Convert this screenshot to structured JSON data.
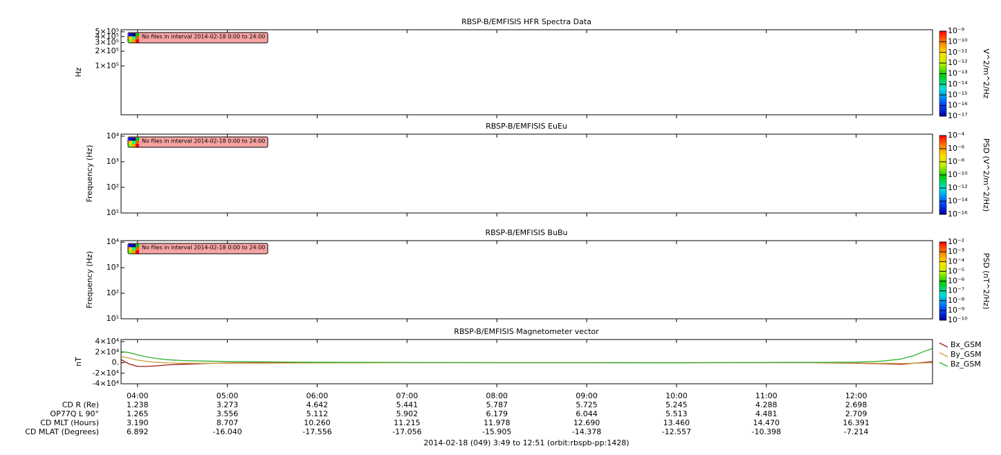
{
  "chart_data": [
    {
      "type": "spectrogram",
      "title": "RBSP-B/EMFISIS  HFR Spectra Data",
      "ylabel": "Hz",
      "log_y": true,
      "ylim": [
        10000,
        550000
      ],
      "yticks": [
        {
          "value": 500000,
          "label": "5×10⁵"
        },
        {
          "value": 400000,
          "label": "4×10⁵"
        },
        {
          "value": 300000,
          "label": "3×10⁵"
        },
        {
          "value": 200000,
          "label": "2×10⁵"
        },
        {
          "value": 100000,
          "label": "1×10⁵"
        }
      ],
      "message": "No files in interval 2014-02-18 0:00 to 24:00",
      "colorbar": {
        "label": "V^2/m^2/Hz",
        "log": true,
        "lim": [
          1e-17,
          1e-09
        ],
        "ticks": [
          {
            "value": 1e-09,
            "label": "10⁻⁹"
          },
          {
            "value": 1e-10,
            "label": "10⁻¹⁰"
          },
          {
            "value": 1e-11,
            "label": "10⁻¹¹"
          },
          {
            "value": 1e-12,
            "label": "10⁻¹²"
          },
          {
            "value": 1e-13,
            "label": "10⁻¹³"
          },
          {
            "value": 1e-14,
            "label": "10⁻¹⁴"
          },
          {
            "value": 1e-15,
            "label": "10⁻¹⁵"
          },
          {
            "value": 1e-16,
            "label": "10⁻¹⁶"
          },
          {
            "value": 1e-17,
            "label": "10⁻¹⁷"
          }
        ]
      }
    },
    {
      "type": "spectrogram",
      "title": "RBSP-B/EMFISIS  EuEu",
      "ylabel": "Frequency (Hz)",
      "log_y": true,
      "ylim": [
        10,
        12000
      ],
      "yticks": [
        {
          "value": 10000,
          "label": "10⁴"
        },
        {
          "value": 1000,
          "label": "10³"
        },
        {
          "value": 100,
          "label": "10²"
        },
        {
          "value": 10,
          "label": "10¹"
        }
      ],
      "message": "No files in interval 2014-02-18 0:00 to 24:00",
      "colorbar": {
        "label": "PSD (V^2/m^2/Hz)",
        "log": true,
        "lim": [
          1e-16,
          0.0001
        ],
        "ticks": [
          {
            "value": 0.0001,
            "label": "10⁻⁴"
          },
          {
            "value": 1e-06,
            "label": "10⁻⁶"
          },
          {
            "value": 1e-08,
            "label": "10⁻⁸"
          },
          {
            "value": 1e-10,
            "label": "10⁻¹⁰"
          },
          {
            "value": 1e-12,
            "label": "10⁻¹²"
          },
          {
            "value": 1e-14,
            "label": "10⁻¹⁴"
          },
          {
            "value": 1e-16,
            "label": "10⁻¹⁶"
          }
        ]
      }
    },
    {
      "type": "spectrogram",
      "title": "RBSP-B/EMFISIS  BuBu",
      "ylabel": "Frequency (Hz)",
      "log_y": true,
      "ylim": [
        10,
        11500
      ],
      "yticks": [
        {
          "value": 10000,
          "label": "10⁴"
        },
        {
          "value": 1000,
          "label": "10³"
        },
        {
          "value": 100,
          "label": "10²"
        },
        {
          "value": 10,
          "label": "10¹"
        }
      ],
      "message": "No files in interval 2014-02-18 0:00 to 24:00",
      "colorbar": {
        "label": "PSD (nT^2/Hz)",
        "log": true,
        "lim": [
          1e-10,
          0.01
        ],
        "ticks": [
          {
            "value": 0.01,
            "label": "10⁻²"
          },
          {
            "value": 0.001,
            "label": "10⁻³"
          },
          {
            "value": 0.0001,
            "label": "10⁻⁴"
          },
          {
            "value": 1e-05,
            "label": "10⁻⁵"
          },
          {
            "value": 1e-06,
            "label": "10⁻⁶"
          },
          {
            "value": 1e-07,
            "label": "10⁻⁷"
          },
          {
            "value": 1e-08,
            "label": "10⁻⁸"
          },
          {
            "value": 1e-09,
            "label": "10⁻⁹"
          },
          {
            "value": 1e-10,
            "label": "10⁻¹⁰"
          }
        ]
      }
    },
    {
      "type": "line",
      "title": "RBSP-B/EMFISIS  Magnetometer vector",
      "ylabel": "nT",
      "ylim": [
        -40000,
        44000
      ],
      "yticks": [
        {
          "value": 40000,
          "label": "4×10⁴"
        },
        {
          "value": 20000,
          "label": "2×10⁴"
        },
        {
          "value": 0,
          "label": "0."
        },
        {
          "value": -20000,
          "label": "-2×10⁴"
        },
        {
          "value": -40000,
          "label": "-4×10⁴"
        }
      ],
      "xlim": [
        3.8167,
        12.85
      ],
      "xticks": [
        {
          "value": 4,
          "label": "04:00"
        },
        {
          "value": 5,
          "label": "05:00"
        },
        {
          "value": 6,
          "label": "06:00"
        },
        {
          "value": 7,
          "label": "07:00"
        },
        {
          "value": 8,
          "label": "08:00"
        },
        {
          "value": 9,
          "label": "09:00"
        },
        {
          "value": 10,
          "label": "10:00"
        },
        {
          "value": 11,
          "label": "11:00"
        },
        {
          "value": 12,
          "label": "12:00"
        }
      ],
      "x": [
        3.8167,
        3.9,
        4.0,
        4.1,
        4.2,
        4.35,
        4.5,
        4.75,
        5,
        5.5,
        6,
        7,
        8,
        9,
        10,
        11,
        11.5,
        12,
        12.3,
        12.5,
        12.65,
        12.75,
        12.85
      ],
      "series": [
        {
          "name": "Bx_GSM",
          "color": "#a01818",
          "values": [
            6000,
            -2000,
            -7000,
            -7000,
            -6000,
            -4000,
            -3000,
            -1500,
            -500,
            0,
            0,
            0,
            0,
            0,
            0,
            0,
            0,
            -1000,
            -2000,
            -3000,
            -1000,
            500,
            2000
          ]
        },
        {
          "name": "By_GSM",
          "color": "#c8a040",
          "values": [
            12000,
            9000,
            5000,
            2500,
            1000,
            -500,
            -1000,
            -1000,
            -1000,
            -700,
            -500,
            0,
            0,
            0,
            0,
            0,
            0,
            -500,
            -1000,
            -1500,
            -1000,
            -500,
            0
          ]
        },
        {
          "name": "Bz_GSM",
          "color": "#30b030",
          "values": [
            21000,
            19500,
            15000,
            11000,
            8000,
            5500,
            4000,
            3000,
            2200,
            1500,
            1000,
            500,
            0,
            0,
            -200,
            500,
            700,
            1200,
            3000,
            7000,
            14000,
            21000,
            27000
          ]
        }
      ]
    }
  ],
  "ephemeris": {
    "labels": [
      "CD R (Re)",
      "OP77Q L 90°",
      "CD MLT (Hours)",
      "CD MLAT (Degrees)"
    ],
    "rows": [
      [
        "1.238",
        "3.273",
        "4.642",
        "5.441",
        "5.787",
        "5.725",
        "5.245",
        "4.288",
        "2.698"
      ],
      [
        "1.265",
        "3.556",
        "5.112",
        "5.902",
        "6.179",
        "6.044",
        "5.513",
        "4.481",
        "2.709"
      ],
      [
        "3.190",
        "8.707",
        "10.260",
        "11.215",
        "11.978",
        "12.690",
        "13.460",
        "14.470",
        "16.391"
      ],
      [
        "6.892",
        "-16.040",
        "-17.556",
        "-17.056",
        "-15.905",
        "-14.378",
        "-12.557",
        "-10.398",
        "-7.214"
      ]
    ]
  },
  "footer": "2014-02-18 (049) 3:49 to 12:51 (orbit:rbspb-pp:1428)"
}
